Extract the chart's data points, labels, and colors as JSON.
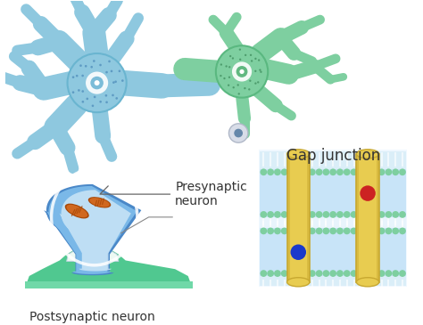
{
  "bg_color": "#ffffff",
  "neuron1_color": "#8ec8df",
  "neuron1_dark": "#5aafc7",
  "neuron1_edge": "#6ab5d0",
  "neuron2_color": "#7ecfa0",
  "neuron2_dark": "#4aaa70",
  "neuron2_edge": "#5ab880",
  "soma_outer": "#4a88c8",
  "soma_mid": "#5a9ad8",
  "soma_fill": "#7ab8e8",
  "soma_light": "#a8cef0",
  "soma_lighter": "#d0e8f8",
  "soma_inner_ring": "#c8dff5",
  "mitochondria_color": "#d06820",
  "mito_edge": "#a84808",
  "postsynaptic_color": "#50c890",
  "postsynaptic_mid": "#70d8a8",
  "postsynaptic_light": "#98e8c0",
  "gap_bg": "#daeef8",
  "gap_bilayer_light": "#c8e4f8",
  "gap_bilayer_blue_head": "#a8ccec",
  "gap_green_head": "#7ecfa0",
  "gap_protein_color": "#e8cc50",
  "gap_protein_edge": "#c8a830",
  "gap_dot_blue": "#1a3acc",
  "gap_dot_red": "#cc2222",
  "label_presynaptic": "Presynaptic\nneuron",
  "label_postsynaptic": "Postsynaptic neuron",
  "label_gap": "Gap junction",
  "font_size_labels": 10,
  "font_size_gap_title": 12,
  "font_color": "#333333"
}
